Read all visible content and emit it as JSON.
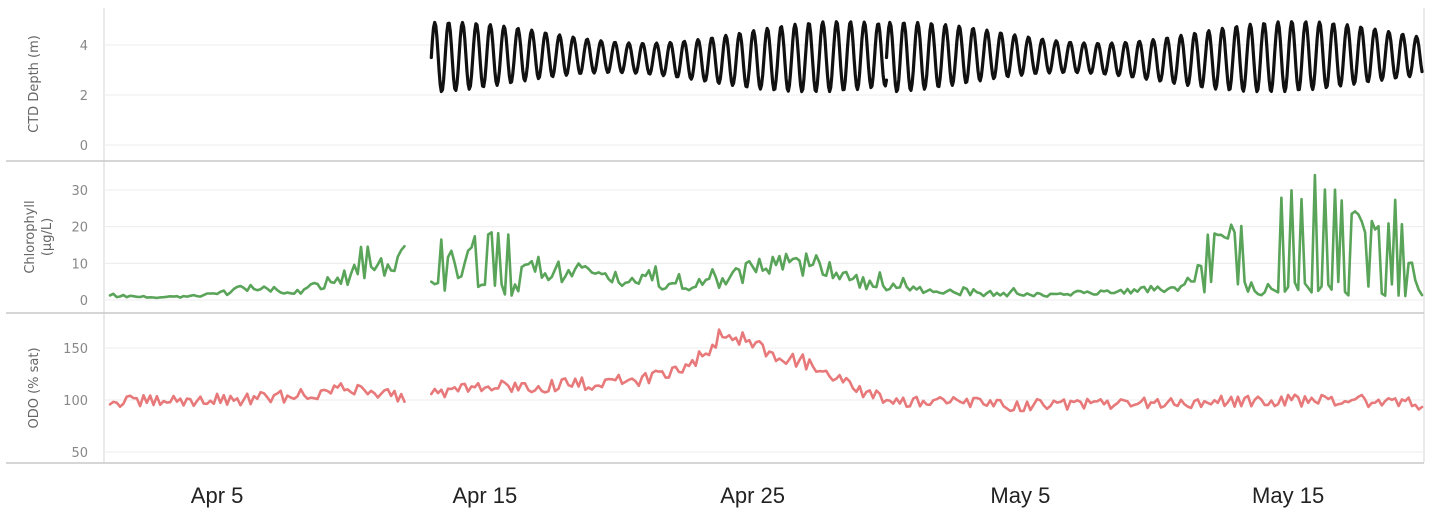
{
  "chart_data": {
    "type": "line",
    "x_range": [
      "2021-04-01",
      "2021-05-20"
    ],
    "x_ticks": [
      {
        "date": "2021-04-05",
        "label": "Apr 5"
      },
      {
        "date": "2021-04-15",
        "label": "Apr 15"
      },
      {
        "date": "2021-04-25",
        "label": "Apr 25"
      },
      {
        "date": "2021-05-05",
        "label": "May 5"
      },
      {
        "date": "2021-05-15",
        "label": "May 15"
      }
    ],
    "grid": true,
    "panels": [
      {
        "id": "depth",
        "ylabel": [
          "CTD Depth (m)"
        ],
        "ylim": [
          -0.5,
          5.5
        ],
        "yticks": [
          0,
          2,
          4
        ],
        "color": "#111111",
        "segments": [
          {
            "start": "2021-04-13",
            "end": "2021-04-30",
            "points": [
              [
                "2021-04-13",
                3.6
              ],
              [
                "2021-04-15",
                4.5
              ],
              [
                "2021-04-15",
                2.7
              ],
              [
                "2021-04-17",
                4.6
              ],
              [
                "2021-04-17",
                2.6
              ],
              [
                "2021-04-19",
                4.6
              ],
              [
                "2021-04-19",
                2.4
              ],
              [
                "2021-04-21",
                4.6
              ],
              [
                "2021-04-21",
                2.3
              ],
              [
                "2021-04-23",
                4.7
              ],
              [
                "2021-04-23",
                2.4
              ],
              [
                "2021-04-25",
                4.7
              ],
              [
                "2021-04-25",
                2.5
              ],
              [
                "2021-04-27",
                4.8
              ],
              [
                "2021-04-27",
                2.6
              ],
              [
                "2021-04-29",
                4.8
              ],
              [
                "2021-04-29",
                2.4
              ],
              [
                "2021-04-30",
                2.2
              ]
            ]
          },
          {
            "start": "2021-04-30",
            "end": "2021-05-20",
            "points": [
              [
                "2021-04-30",
                4.5
              ],
              [
                "2021-05-02",
                4.4
              ],
              [
                "2021-05-02",
                2.9
              ],
              [
                "2021-05-04",
                4.4
              ],
              [
                "2021-05-04",
                3.1
              ],
              [
                "2021-05-06",
                4.1
              ],
              [
                "2021-05-06",
                3.3
              ],
              [
                "2021-05-08",
                4.2
              ],
              [
                "2021-05-08",
                3.0
              ],
              [
                "2021-05-10",
                4.5
              ],
              [
                "2021-05-10",
                2.7
              ],
              [
                "2021-05-12",
                4.6
              ],
              [
                "2021-05-12",
                2.5
              ],
              [
                "2021-05-14",
                4.8
              ],
              [
                "2021-05-14",
                2.3
              ],
              [
                "2021-05-16",
                4.9
              ],
              [
                "2021-05-16",
                2.2
              ],
              [
                "2021-05-18",
                4.9
              ],
              [
                "2021-05-18",
                2.1
              ],
              [
                "2021-05-20",
                4.7
              ]
            ]
          }
        ]
      },
      {
        "id": "chl",
        "ylabel": [
          "Chlorophyll",
          "(µg/L)"
        ],
        "ylim": [
          -2,
          38
        ],
        "yticks": [
          0,
          10,
          20,
          30
        ],
        "color": "#5aa45a",
        "segments": [
          {
            "start": "2021-04-01",
            "end": "2021-04-12",
            "points": [
              [
                "2021-04-01",
                1.5
              ],
              [
                "2021-04-03",
                1.0
              ],
              [
                "2021-04-05",
                2.0
              ],
              [
                "2021-04-06",
                4.5
              ],
              [
                "2021-04-08",
                3.0
              ],
              [
                "2021-04-09",
                6.0
              ],
              [
                "2021-04-10",
                9.0
              ],
              [
                "2021-04-11",
                13.0
              ],
              [
                "2021-04-12",
                15.0
              ],
              [
                "2021-04-12",
                2.0
              ]
            ]
          },
          {
            "start": "2021-04-13",
            "end": "2021-05-20",
            "points": [
              [
                "2021-04-13",
                19.0
              ],
              [
                "2021-04-14",
                12.0
              ],
              [
                "2021-04-15",
                21.0
              ],
              [
                "2021-04-17",
                12.0
              ],
              [
                "2021-04-19",
                9.0
              ],
              [
                "2021-04-21",
                7.0
              ],
              [
                "2021-04-23",
                5.0
              ],
              [
                "2021-04-25",
                11.0
              ],
              [
                "2021-04-27",
                14.0
              ],
              [
                "2021-04-29",
                6.0
              ],
              [
                "2021-05-01",
                4.0
              ],
              [
                "2021-05-03",
                2.5
              ],
              [
                "2021-05-06",
                2.0
              ],
              [
                "2021-05-09",
                3.0
              ],
              [
                "2021-05-11",
                5.0
              ],
              [
                "2021-05-12",
                17.0
              ],
              [
                "2021-05-13",
                20.0
              ],
              [
                "2021-05-14",
                24.0
              ],
              [
                "2021-05-15",
                29.0
              ],
              [
                "2021-05-16",
                35.0
              ],
              [
                "2021-05-17",
                28.0
              ],
              [
                "2021-05-18",
                20.0
              ],
              [
                "2021-05-19",
                26.0
              ],
              [
                "2021-05-20",
                2.0
              ]
            ]
          }
        ]
      },
      {
        "id": "odo",
        "ylabel": [
          "ODO (% sat)"
        ],
        "ylim": [
          45,
          172
        ],
        "yticks": [
          50,
          100,
          150
        ],
        "color": "#e8797a",
        "segments": [
          {
            "start": "2021-04-01",
            "end": "2021-04-12",
            "points": [
              [
                "2021-04-01",
                98
              ],
              [
                "2021-04-03",
                99
              ],
              [
                "2021-04-05",
                100
              ],
              [
                "2021-04-07",
                102
              ],
              [
                "2021-04-09",
                107
              ],
              [
                "2021-04-10",
                112
              ],
              [
                "2021-04-11",
                108
              ],
              [
                "2021-04-12",
                103
              ]
            ]
          },
          {
            "start": "2021-04-13",
            "end": "2021-05-20",
            "points": [
              [
                "2021-04-13",
                108
              ],
              [
                "2021-04-15",
                112
              ],
              [
                "2021-04-17",
                113
              ],
              [
                "2021-04-19",
                116
              ],
              [
                "2021-04-21",
                120
              ],
              [
                "2021-04-22",
                128
              ],
              [
                "2021-04-23",
                140
              ],
              [
                "2021-04-24",
                168
              ],
              [
                "2021-04-25",
                154
              ],
              [
                "2021-04-26",
                143
              ],
              [
                "2021-04-27",
                136
              ],
              [
                "2021-04-28",
                122
              ],
              [
                "2021-04-29",
                108
              ],
              [
                "2021-04-30",
                100
              ],
              [
                "2021-05-02",
                98
              ],
              [
                "2021-05-05",
                95
              ],
              [
                "2021-05-08",
                96
              ],
              [
                "2021-05-11",
                97
              ],
              [
                "2021-05-14",
                99
              ],
              [
                "2021-05-17",
                100
              ],
              [
                "2021-05-20",
                96
              ]
            ]
          }
        ]
      }
    ]
  }
}
